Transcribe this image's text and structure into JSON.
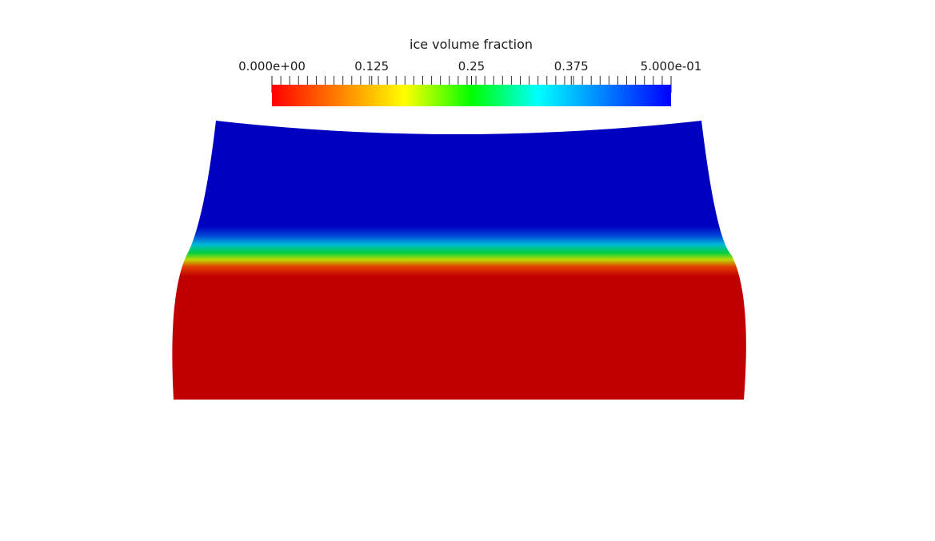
{
  "chart_data": {
    "type": "heatmap",
    "title": "ice volume fraction",
    "colorbar": {
      "range": [
        0.0,
        0.5
      ],
      "tick_labels": [
        "0.000e+00",
        "0.125",
        "0.25",
        "0.375",
        "5.000e-01"
      ],
      "tick_values": [
        0.0,
        0.125,
        0.25,
        0.375,
        0.5
      ],
      "colormap": [
        "#ff0000",
        "#ff8000",
        "#ffff00",
        "#00ff00",
        "#00ffff",
        "#0080ff",
        "#0000ff"
      ]
    },
    "field": {
      "upper_region": {
        "value": 0.5,
        "color": "#0000c0"
      },
      "lower_region": {
        "value": 0.0,
        "color": "#c00000"
      },
      "interface": "thin smooth transition band through green between upper blue and lower red regions"
    }
  }
}
